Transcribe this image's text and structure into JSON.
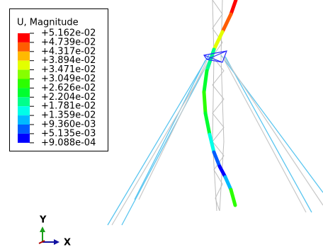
{
  "legend": {
    "title": "U, Magnitude",
    "labels": [
      "+5.162e-02",
      "+4.739e-02",
      "+4.317e-02",
      "+3.894e-02",
      "+3.471e-02",
      "+3.049e-02",
      "+2.626e-02",
      "+2.204e-02",
      "+1.781e-02",
      "+1.359e-02",
      "+9.360e-03",
      "+5.135e-03",
      "+9.088e-04"
    ]
  },
  "triad": {
    "y_label": "Y",
    "x_label": "X"
  }
}
